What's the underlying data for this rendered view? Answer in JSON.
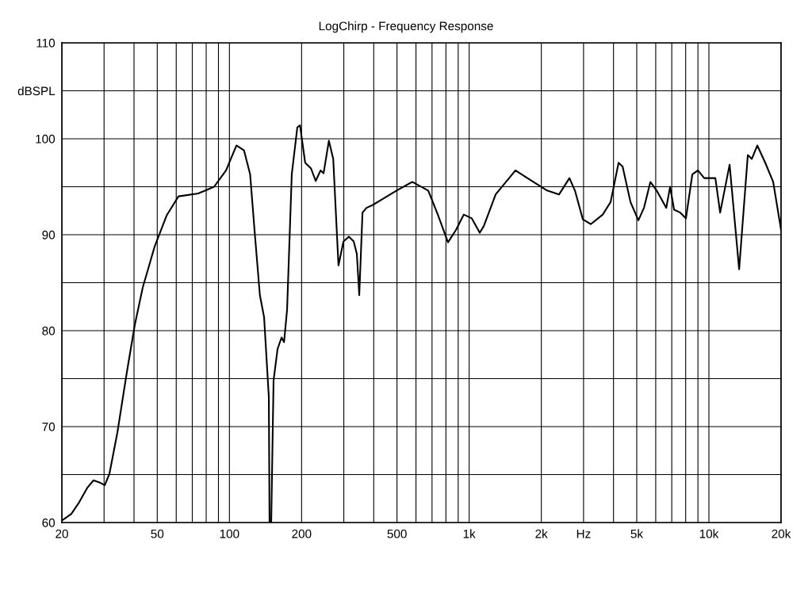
{
  "chart_data": {
    "type": "line",
    "title": "LogChirp - Frequency Response",
    "log": "x",
    "grid": true,
    "legend": false,
    "marker": "none",
    "line_style": "solid",
    "xlim": [
      20,
      20000
    ],
    "ylim": [
      60,
      110
    ],
    "xticks": [
      20,
      {
        "value": 30,
        "label": null
      },
      {
        "value": 40,
        "label": null
      },
      50,
      {
        "value": 60,
        "label": null
      },
      {
        "value": 70,
        "label": null
      },
      {
        "value": 80,
        "label": null
      },
      {
        "value": 90,
        "label": null
      },
      100,
      200,
      {
        "value": 300,
        "label": null
      },
      {
        "value": 400,
        "label": null
      },
      500,
      {
        "value": 600,
        "label": null
      },
      {
        "value": 700,
        "label": null
      },
      {
        "value": 800,
        "label": null
      },
      {
        "value": 900,
        "label": null
      },
      {
        "value": 1000,
        "label": "1k"
      },
      {
        "value": 2000,
        "label": "2k"
      },
      {
        "value": 3000,
        "label": "Hz"
      },
      {
        "value": 4000,
        "label": null
      },
      {
        "value": 5000,
        "label": "5k"
      },
      {
        "value": 6000,
        "label": null
      },
      {
        "value": 7000,
        "label": null
      },
      {
        "value": 8000,
        "label": null
      },
      {
        "value": 9000,
        "label": null
      },
      {
        "value": 10000,
        "label": "10k"
      },
      {
        "value": 20000,
        "label": "20k"
      }
    ],
    "yticks": [
      60,
      {
        "value": 65,
        "label": null
      },
      70,
      {
        "value": 75,
        "label": null
      },
      80,
      {
        "value": 85,
        "label": null
      },
      90,
      {
        "value": 95,
        "label": null
      },
      100,
      {
        "value": 105,
        "label": "dBSPL"
      },
      110
    ],
    "series": [
      {
        "color": "#000000",
        "x": [
          20,
          21.9,
          23.6,
          25.5,
          27.1,
          28.6,
          30.2,
          31.6,
          34.1,
          37.3,
          40.3,
          43.5,
          48.8,
          54.7,
          61.3,
          74.1,
          86.3,
          96.8,
          107,
          115,
          122,
          128,
          134,
          139.5,
          146,
          147,
          149.4,
          152.8,
          158.8,
          165,
          169,
          174,
          182,
          192,
          197,
          207,
          219,
          229,
          240,
          247,
          260,
          271,
          285,
          299,
          315,
          330,
          340,
          348,
          359,
          373,
          396,
          498,
          579,
          675,
          740,
          816,
          881,
          950,
          1026,
          1107,
          1151,
          1290,
          1560,
          1750,
          2115,
          2372,
          2620,
          2762,
          2980,
          3215,
          3606,
          3890,
          4200,
          4365,
          4710,
          5080,
          5360,
          5700,
          6055,
          6640,
          6890,
          7160,
          7600,
          8020,
          8530,
          9000,
          9560,
          10090,
          10640,
          11140,
          12200,
          13370,
          14530,
          15100,
          15920,
          17180,
          18540,
          20000
        ],
        "values": [
          60.2,
          60.9,
          62.1,
          63.6,
          64.4,
          64.2,
          63.9,
          65.1,
          69.4,
          75.6,
          80.6,
          84.5,
          88.8,
          92.0,
          94.0,
          94.3,
          95.0,
          96.7,
          99.3,
          98.8,
          96.3,
          89.7,
          83.7,
          81.4,
          73.1,
          60,
          60,
          74.8,
          78.1,
          79.3,
          78.8,
          82.2,
          96.3,
          101.2,
          101.4,
          97.5,
          96.9,
          95.6,
          96.7,
          96.4,
          99.8,
          97.9,
          86.8,
          89.3,
          89.8,
          89.3,
          88.0,
          83.7,
          92.3,
          92.8,
          93.1,
          94.6,
          95.5,
          94.6,
          92.1,
          89.2,
          90.5,
          92.1,
          91.7,
          90.2,
          90.9,
          94.2,
          96.7,
          95.9,
          94.6,
          94.2,
          95.9,
          94.6,
          91.6,
          91.1,
          92.1,
          93.4,
          97.5,
          97.1,
          93.4,
          91.5,
          92.8,
          95.5,
          94.6,
          92.8,
          95.0,
          92.6,
          92.3,
          91.7,
          96.3,
          96.7,
          95.9,
          95.9,
          95.9,
          92.3,
          97.3,
          86.4,
          98.3,
          97.9,
          99.3,
          97.5,
          95.5,
          90.5
        ]
      }
    ]
  }
}
